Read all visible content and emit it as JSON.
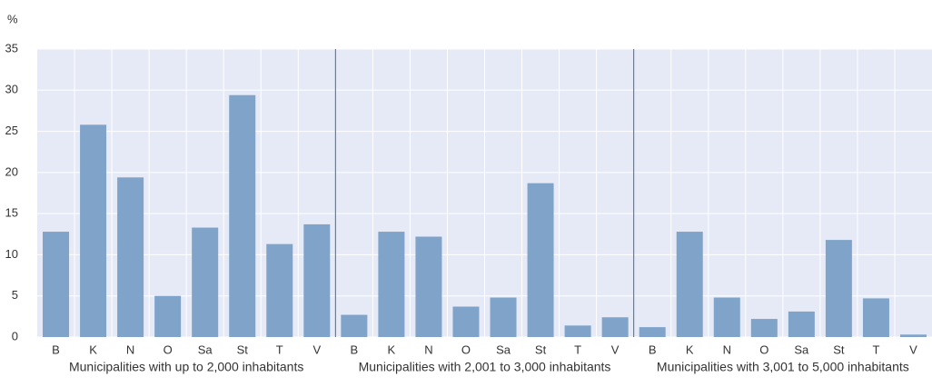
{
  "chart_data": {
    "type": "bar",
    "y_label": "%",
    "categories": [
      "B",
      "K",
      "N",
      "O",
      "Sa",
      "St",
      "T",
      "V",
      "B",
      "K",
      "N",
      "O",
      "Sa",
      "St",
      "T",
      "V",
      "B",
      "K",
      "N",
      "O",
      "Sa",
      "St",
      "T",
      "V"
    ],
    "values": [
      12.8,
      25.8,
      19.4,
      5.0,
      13.3,
      29.4,
      11.3,
      13.7,
      2.7,
      12.8,
      12.2,
      3.7,
      4.8,
      18.7,
      1.4,
      2.4,
      1.2,
      12.8,
      4.8,
      2.2,
      3.1,
      11.8,
      4.7,
      0.3
    ],
    "group_labels": [
      "Municipalities with up to 2,000 inhabitants",
      "Municipalities with 2,001 to 3,000 inhabitants",
      "Municipalities with 3,001 to 5,000 inhabitants"
    ],
    "color": "#7fa3c9",
    "ylim": [
      0,
      35
    ],
    "yticks": [
      0,
      5,
      10,
      15,
      20,
      25,
      30,
      35
    ],
    "grid": true
  }
}
